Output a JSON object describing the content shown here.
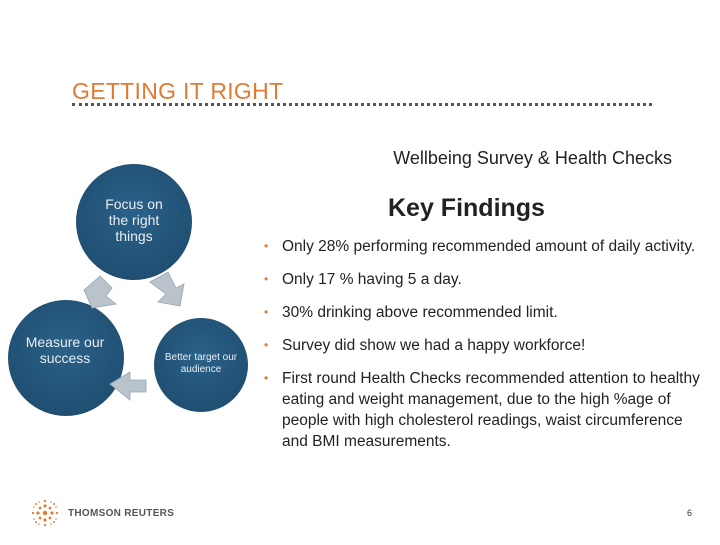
{
  "slide": {
    "title": "GETTING IT RIGHT",
    "subtitle": "Wellbeing Survey & Health Checks",
    "page_number": "6"
  },
  "cycle": {
    "top": "Focus on the right things",
    "left": "Measure our success",
    "right": "Better target our audience"
  },
  "key_findings": {
    "title": "Key Findings",
    "items": [
      "Only 28% performing recommended amount of daily activity.",
      "Only 17 % having 5 a day.",
      "30% drinking above recommended limit.",
      "Survey did show we had a happy workforce!",
      "First round Health Checks recommended attention to healthy eating and weight management, due to the high %age of people with high cholesterol readings, waist circumference and BMI measurements."
    ]
  },
  "logo": {
    "text": "THOMSON REUTERS",
    "icon": "thomson-reuters-dots-icon"
  },
  "colors": {
    "accent": "#e07b33",
    "circle": "#1f4e70",
    "arrow": "#b9c3cc"
  }
}
